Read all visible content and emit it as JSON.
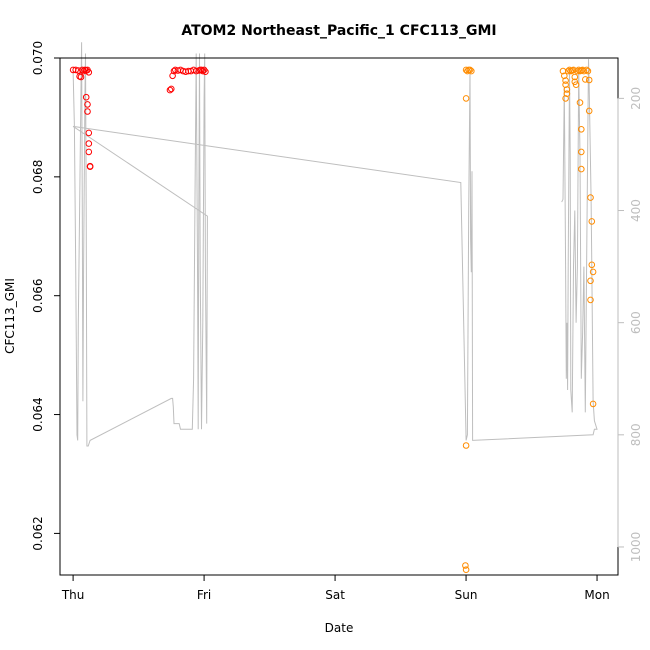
{
  "chart_data": {
    "type": "scatter",
    "title": "ATOM2 Northeast_Pacific_1 CFC113_GMI",
    "xlabel": "Date",
    "ylabel": "CFC113_GMI",
    "x_ticks": [
      "Thu",
      "Fri",
      "Sat",
      "Sun",
      "Mon"
    ],
    "x_range_days": [
      -0.1,
      4.16
    ],
    "ylim": [
      0.0613,
      0.07
    ],
    "y_ticks": [
      "0.062",
      "0.064",
      "0.066",
      "0.068",
      "0.070"
    ],
    "y2_ticks": [
      "200",
      "400",
      "600",
      "800",
      "1000"
    ],
    "y2_range": [
      128,
      1050
    ],
    "grid": false,
    "colors": {
      "early": "#ff0000",
      "late": "#ff8c00",
      "altitude_line": "#bebebe"
    },
    "series": [
      {
        "color": "early",
        "points": [
          [
            0.0,
            0.0698
          ],
          [
            0.02,
            0.0698
          ],
          [
            0.04,
            0.06979
          ],
          [
            0.05,
            0.06969
          ],
          [
            0.06,
            0.06968
          ],
          [
            0.07,
            0.0698
          ],
          [
            0.08,
            0.06978
          ],
          [
            0.09,
            0.0698
          ],
          [
            0.1,
            0.06979
          ],
          [
            0.11,
            0.0698
          ],
          [
            0.12,
            0.06976
          ],
          [
            0.1,
            0.06934
          ],
          [
            0.11,
            0.06922
          ],
          [
            0.11,
            0.0691
          ],
          [
            0.12,
            0.06874
          ],
          [
            0.12,
            0.06856
          ],
          [
            0.12,
            0.06842
          ],
          [
            0.13,
            0.06818
          ],
          [
            0.13,
            0.06817
          ],
          [
            0.74,
            0.06946
          ],
          [
            0.75,
            0.06948
          ],
          [
            0.76,
            0.0697
          ],
          [
            0.77,
            0.06978
          ],
          [
            0.78,
            0.0698
          ],
          [
            0.8,
            0.06979
          ],
          [
            0.82,
            0.0698
          ],
          [
            0.84,
            0.06978
          ],
          [
            0.86,
            0.06977
          ],
          [
            0.88,
            0.06978
          ],
          [
            0.9,
            0.06978
          ],
          [
            0.92,
            0.0698
          ],
          [
            0.94,
            0.06978
          ],
          [
            0.96,
            0.06979
          ],
          [
            0.98,
            0.0698
          ],
          [
            0.99,
            0.06978
          ],
          [
            1.0,
            0.0698
          ],
          [
            1.01,
            0.06977
          ],
          [
            0.97,
            0.0698
          ]
        ]
      },
      {
        "color": "late",
        "points": [
          [
            3.0,
            0.0698
          ],
          [
            3.01,
            0.06978
          ],
          [
            3.02,
            0.0698
          ],
          [
            3.03,
            0.0698
          ],
          [
            3.04,
            0.06978
          ],
          [
            3.0,
            0.06932
          ],
          [
            3.0,
            0.06348
          ],
          [
            2.995,
            0.06146
          ],
          [
            3.0,
            0.06139
          ],
          [
            3.74,
            0.06978
          ],
          [
            3.75,
            0.0697
          ],
          [
            3.76,
            0.06962
          ],
          [
            3.76,
            0.06955
          ],
          [
            3.77,
            0.06947
          ],
          [
            3.77,
            0.0694
          ],
          [
            3.76,
            0.06932
          ],
          [
            3.78,
            0.06978
          ],
          [
            3.79,
            0.0698
          ],
          [
            3.8,
            0.06978
          ],
          [
            3.81,
            0.06979
          ],
          [
            3.82,
            0.0698
          ],
          [
            3.83,
            0.06968
          ],
          [
            3.83,
            0.0696
          ],
          [
            3.84,
            0.06955
          ],
          [
            3.85,
            0.06978
          ],
          [
            3.86,
            0.0698
          ],
          [
            3.87,
            0.06978
          ],
          [
            3.88,
            0.06979
          ],
          [
            3.89,
            0.0698
          ],
          [
            3.9,
            0.06978
          ],
          [
            3.91,
            0.06964
          ],
          [
            3.92,
            0.0698
          ],
          [
            3.93,
            0.06978
          ],
          [
            3.94,
            0.06963
          ],
          [
            3.87,
            0.06925
          ],
          [
            3.88,
            0.0688
          ],
          [
            3.88,
            0.06842
          ],
          [
            3.88,
            0.06813
          ],
          [
            3.94,
            0.06911
          ],
          [
            3.95,
            0.06765
          ],
          [
            3.96,
            0.06725
          ],
          [
            3.96,
            0.06652
          ],
          [
            3.97,
            0.0664
          ],
          [
            3.95,
            0.06625
          ],
          [
            3.95,
            0.06593
          ],
          [
            3.97,
            0.06418
          ]
        ]
      }
    ],
    "altitude_line": [
      [
        0.0,
        150
      ],
      [
        0.01,
        250
      ],
      [
        0.02,
        500
      ],
      [
        0.03,
        800
      ],
      [
        0.035,
        810
      ],
      [
        0.04,
        600
      ],
      [
        0.05,
        400
      ],
      [
        0.06,
        180
      ],
      [
        0.065,
        100
      ],
      [
        0.07,
        400
      ],
      [
        0.075,
        740
      ],
      [
        0.08,
        500
      ],
      [
        0.09,
        200
      ],
      [
        0.095,
        120
      ],
      [
        0.1,
        400
      ],
      [
        0.105,
        820
      ],
      [
        0.115,
        820
      ],
      [
        0.13,
        810
      ],
      [
        0.75,
        735
      ],
      [
        0.76,
        735
      ],
      [
        0.765,
        750
      ],
      [
        0.77,
        780
      ],
      [
        0.81,
        780
      ],
      [
        0.82,
        790
      ],
      [
        0.91,
        790
      ],
      [
        0.92,
        700
      ],
      [
        0.93,
        400
      ],
      [
        0.94,
        120
      ],
      [
        0.95,
        500
      ],
      [
        0.955,
        790
      ],
      [
        0.96,
        400
      ],
      [
        0.965,
        120
      ],
      [
        0.97,
        500
      ],
      [
        0.98,
        790
      ],
      [
        0.99,
        600
      ],
      [
        1.0,
        200
      ],
      [
        1.005,
        120
      ],
      [
        1.01,
        500
      ],
      [
        1.02,
        780
      ],
      [
        1.025,
        410
      ],
      [
        0.0,
        250
      ],
      [
        2.96,
        350
      ],
      [
        3.0,
        810
      ],
      [
        3.01,
        800
      ],
      [
        3.02,
        400
      ],
      [
        3.03,
        150
      ],
      [
        3.035,
        450
      ],
      [
        3.04,
        510
      ],
      [
        3.045,
        330
      ],
      [
        3.05,
        810
      ],
      [
        3.97,
        800
      ],
      [
        3.98,
        790
      ],
      [
        4.0,
        790
      ],
      [
        3.98,
        775
      ],
      [
        3.97,
        740
      ],
      [
        3.96,
        500
      ],
      [
        3.955,
        380
      ],
      [
        3.94,
        180
      ],
      [
        3.935,
        130
      ],
      [
        3.92,
        500
      ],
      [
        3.91,
        760
      ],
      [
        3.9,
        500
      ],
      [
        3.89,
        620
      ],
      [
        3.88,
        700
      ],
      [
        3.87,
        300
      ],
      [
        3.86,
        150
      ],
      [
        3.85,
        500
      ],
      [
        3.84,
        600
      ],
      [
        3.83,
        400
      ],
      [
        3.82,
        500
      ],
      [
        3.81,
        760
      ],
      [
        3.8,
        720
      ],
      [
        3.795,
        300
      ],
      [
        3.79,
        150
      ],
      [
        3.78,
        500
      ],
      [
        3.775,
        720
      ],
      [
        3.77,
        600
      ],
      [
        3.765,
        700
      ],
      [
        3.76,
        500
      ],
      [
        3.75,
        180
      ],
      [
        3.74,
        380
      ],
      [
        3.73,
        385
      ]
    ]
  }
}
